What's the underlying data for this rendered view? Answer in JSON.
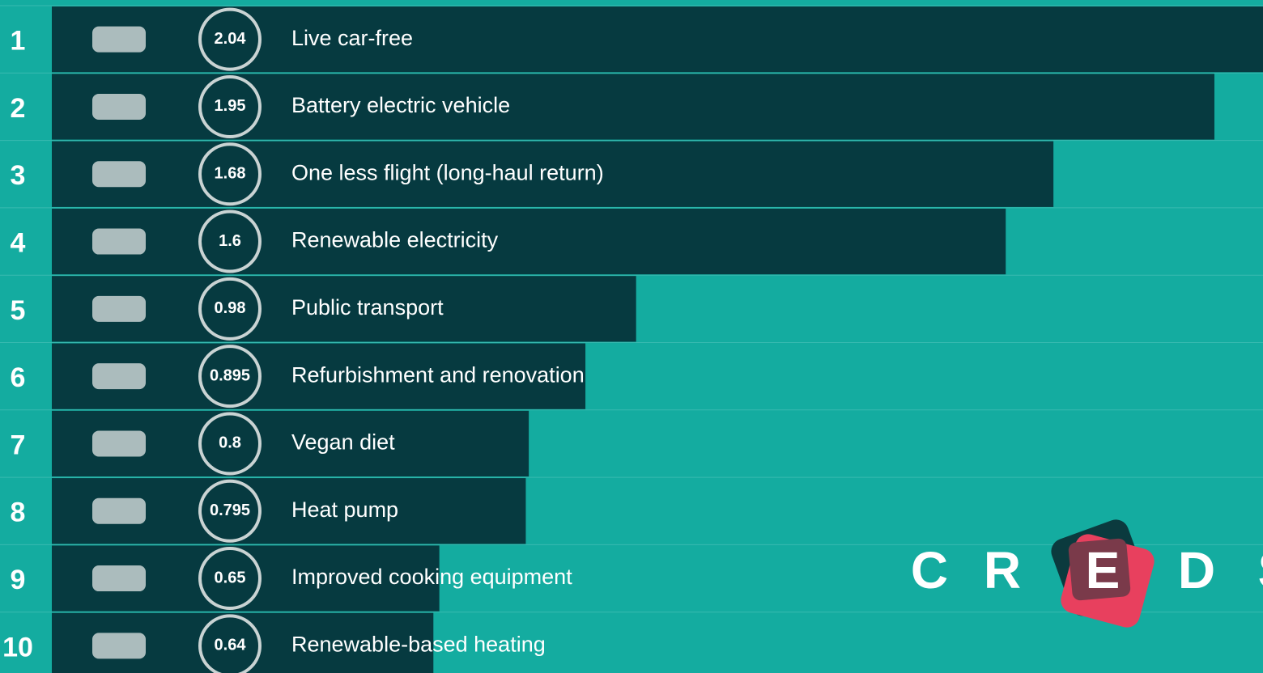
{
  "chart_data": {
    "type": "bar",
    "orientation": "horizontal",
    "ranks": [
      1,
      2,
      3,
      4,
      5,
      6,
      7,
      8,
      9,
      10
    ],
    "categories": [
      "Live car-free",
      "Battery electric vehicle",
      "One less flight (long-haul return)",
      "Renewable electricity",
      "Public transport",
      "Refurbishment and renovation",
      "Vegan diet",
      "Heat pump",
      "Improved cooking equipment",
      "Renewable-based heating"
    ],
    "values": [
      2.04,
      1.95,
      1.68,
      1.6,
      0.98,
      0.895,
      0.8,
      0.795,
      0.65,
      0.64
    ],
    "color": "#063a40",
    "logo": [
      "C",
      "R",
      "E",
      "D",
      "S"
    ]
  }
}
